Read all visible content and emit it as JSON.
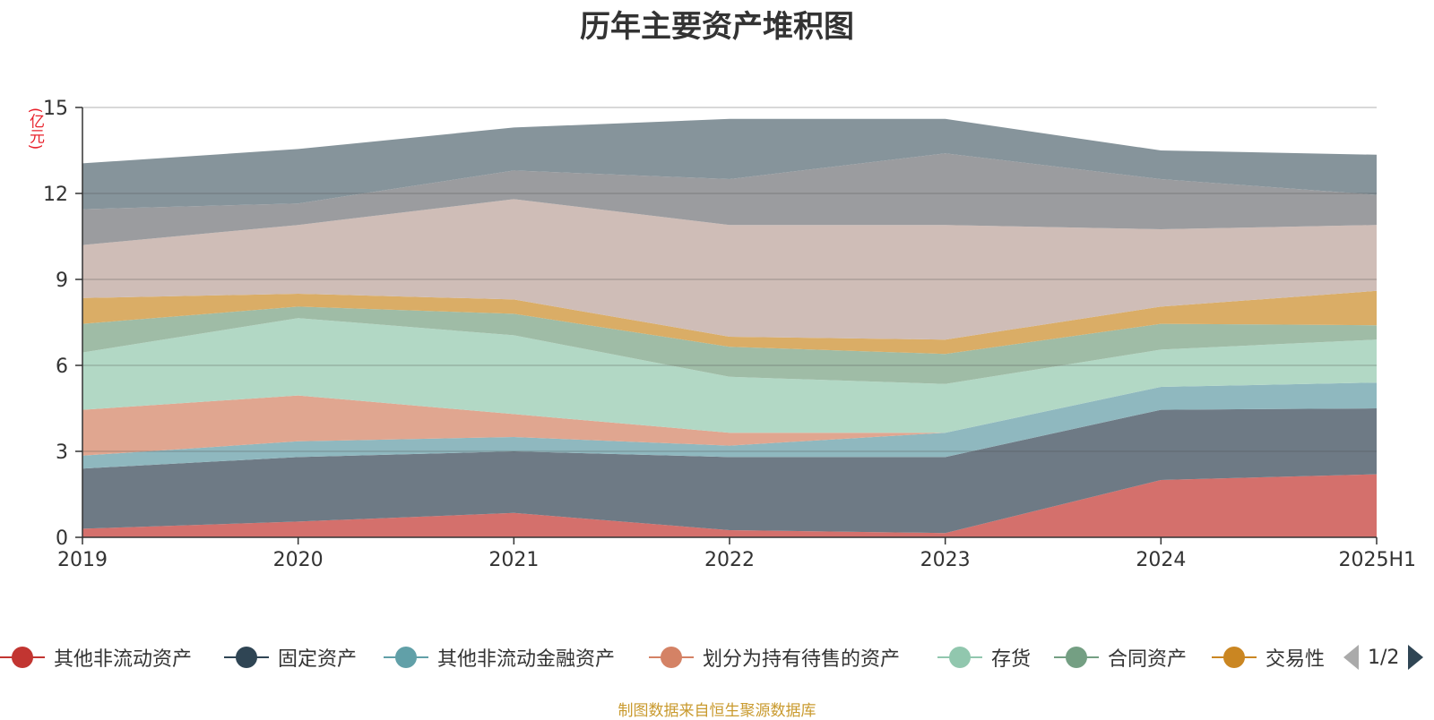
{
  "title": "历年主要资产堆积图",
  "unit_label": "(亿元)",
  "source_note": "制图数据来自恒生聚源数据库",
  "legend_page": "1/2",
  "chart_data": {
    "type": "area",
    "stacked": true,
    "title": "历年主要资产堆积图",
    "ylabel": "(亿元)",
    "ylim": [
      0,
      15
    ],
    "yticks": [
      "0",
      "3",
      "6",
      "9",
      "12",
      "15"
    ],
    "grid": true,
    "legend_position": "bottom",
    "categories": [
      "2019",
      "2020",
      "2021",
      "2022",
      "2023",
      "2024",
      "2025H1"
    ],
    "series": [
      {
        "name": "其他非流动资产",
        "color": "#d4706c",
        "legend_color": "#c23531",
        "in_legend": true,
        "values": [
          0.3,
          0.55,
          0.85,
          0.25,
          0.15,
          2.0,
          2.2
        ]
      },
      {
        "name": "固定资产",
        "color": "#6e7a85",
        "legend_color": "#2f4554",
        "in_legend": true,
        "values": [
          2.1,
          2.25,
          2.15,
          2.55,
          2.65,
          2.45,
          2.3
        ]
      },
      {
        "name": "其他非流动金融资产",
        "color": "#8fb8bf",
        "legend_color": "#61a0a8",
        "in_legend": true,
        "values": [
          0.45,
          0.55,
          0.5,
          0.4,
          0.85,
          0.8,
          0.9
        ]
      },
      {
        "name": "划分为持有待售的资产",
        "color": "#e0a690",
        "legend_color": "#d48265",
        "in_legend": true,
        "values": [
          1.6,
          1.6,
          0.8,
          0.45,
          0.0,
          0.0,
          0.0
        ]
      },
      {
        "name": "存货",
        "color": "#b2d8c5",
        "legend_color": "#91c7ae",
        "in_legend": true,
        "values": [
          2.0,
          2.7,
          2.75,
          1.95,
          1.7,
          1.3,
          1.5
        ]
      },
      {
        "name": "合同资产",
        "color": "#9fbca6",
        "legend_color": "#749f83",
        "in_legend": true,
        "values": [
          1.0,
          0.4,
          0.75,
          1.05,
          1.05,
          0.9,
          0.5
        ]
      },
      {
        "name": "交易性",
        "color": "#daad66",
        "legend_color": "#ca8622",
        "in_legend": true,
        "values": [
          0.9,
          0.45,
          0.5,
          0.35,
          0.5,
          0.6,
          1.2
        ]
      },
      {
        "name": "",
        "color": "#cfbdb7",
        "legend_color": "#bda29a",
        "in_legend": false,
        "values": [
          1.85,
          2.4,
          3.5,
          3.9,
          4.0,
          2.7,
          2.3
        ]
      },
      {
        "name": "",
        "color": "#9b9c9f",
        "legend_color": "#6e7074",
        "in_legend": false,
        "values": [
          1.25,
          0.75,
          1.0,
          1.6,
          2.5,
          1.75,
          1.05
        ]
      },
      {
        "name": "",
        "color": "#86949b",
        "legend_color": "#546570",
        "in_legend": false,
        "values": [
          1.6,
          1.9,
          1.5,
          2.1,
          1.2,
          1.0,
          1.4
        ]
      }
    ]
  },
  "icons": {
    "prev": "caret-left-icon",
    "next": "caret-right-icon"
  }
}
